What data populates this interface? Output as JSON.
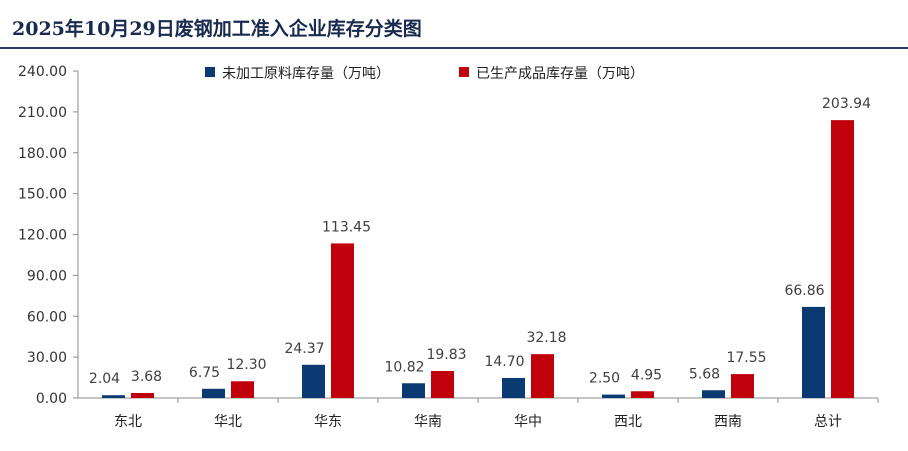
{
  "title": "2025年10月29日废钢加工准入企业库存分类图",
  "colors": {
    "series1": "#0b3a73",
    "series2": "#c0000b",
    "title": "#1a2a4f"
  },
  "chart_data": {
    "type": "bar",
    "title": "2025年10月29日废钢加工准入企业库存分类图",
    "categories": [
      "东北",
      "华北",
      "华东",
      "华南",
      "华中",
      "西北",
      "西南",
      "总计"
    ],
    "series": [
      {
        "name": "未加工原料库存量（万吨）",
        "values": [
          2.04,
          6.75,
          24.37,
          10.82,
          14.7,
          2.5,
          5.68,
          66.86
        ],
        "labels": [
          "2.04",
          "6.75",
          "24.37",
          "10.82",
          "14.70",
          "2.50",
          "5.68",
          "66.86"
        ]
      },
      {
        "name": "已生产成品库存量（万吨）",
        "values": [
          3.68,
          12.3,
          113.45,
          19.83,
          32.18,
          4.95,
          17.55,
          203.94
        ],
        "labels": [
          "3.68",
          "12.30",
          "113.45",
          "19.83",
          "32.18",
          "4.95",
          "17.55",
          "203.94"
        ]
      }
    ],
    "yticks": [
      "0.00",
      "30.00",
      "60.00",
      "90.00",
      "120.00",
      "150.00",
      "180.00",
      "210.00",
      "240.00"
    ],
    "ylim": [
      0,
      240
    ],
    "legend": "top-center",
    "grid": false
  }
}
